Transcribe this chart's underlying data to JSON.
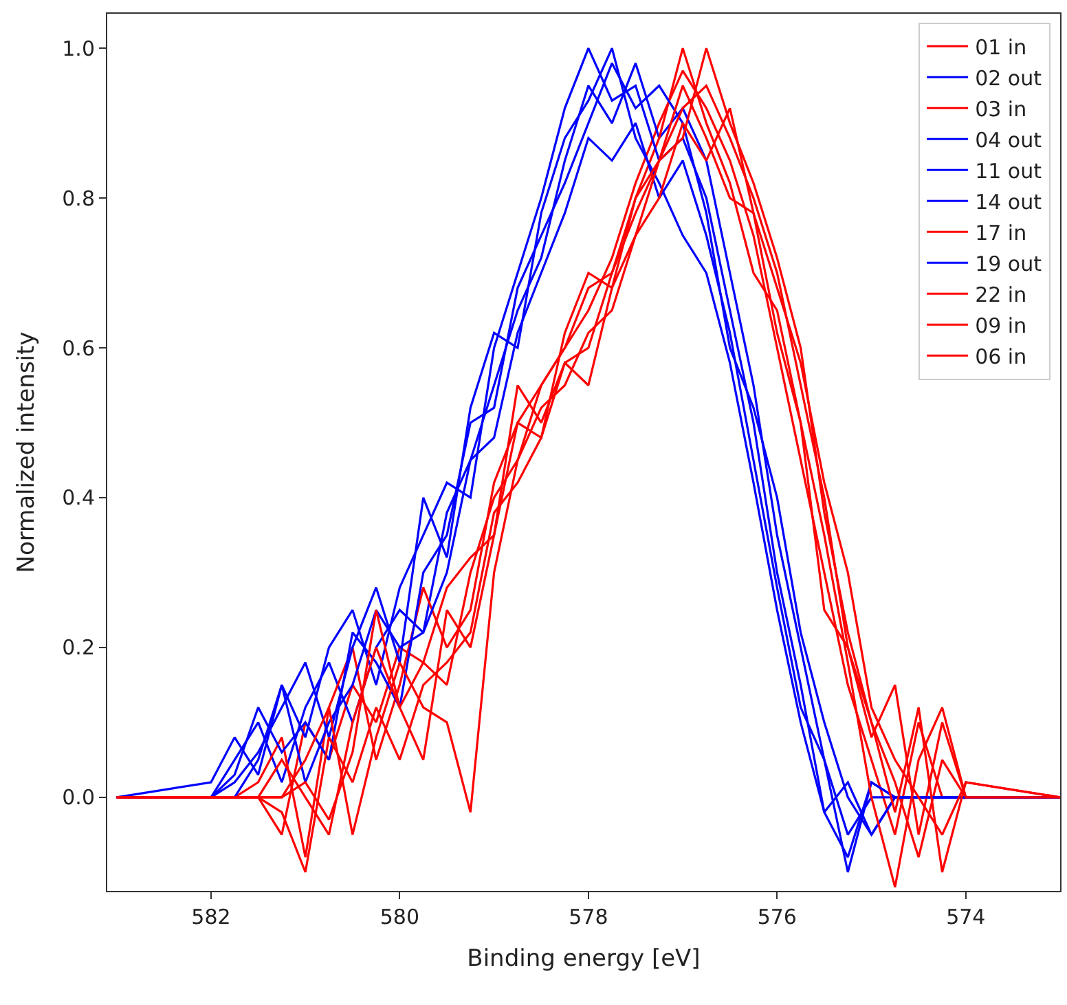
{
  "chart_data": {
    "type": "line",
    "xlabel": "Binding energy [eV]",
    "ylabel": "Normalized intensity",
    "x": [
      583,
      582,
      581.75,
      581.5,
      581.25,
      581,
      580.75,
      580.5,
      580.25,
      580,
      579.75,
      579.5,
      579.25,
      579,
      578.75,
      578.5,
      578.25,
      578,
      577.75,
      577.5,
      577.25,
      577,
      576.75,
      576.5,
      576.25,
      576,
      575.75,
      575.5,
      575.25,
      575,
      574.75,
      574.5,
      574.25,
      574,
      573
    ],
    "series": [
      {
        "name": "01 in",
        "color": "#ff0000",
        "values": [
          0,
          0,
          0,
          0,
          -0.05,
          0.1,
          0.05,
          0.15,
          0.1,
          0.2,
          0.18,
          0.15,
          0.3,
          0.4,
          0.45,
          0.55,
          0.6,
          0.65,
          0.72,
          0.82,
          0.9,
          0.97,
          0.92,
          0.85,
          0.75,
          0.6,
          0.45,
          0.3,
          0.15,
          0.05,
          -0.05,
          0.1,
          0,
          0,
          0
        ]
      },
      {
        "name": "02 out",
        "color": "#0000ff",
        "values": [
          0,
          0,
          0.05,
          0.1,
          0.02,
          0.12,
          0.18,
          0.1,
          0.2,
          0.25,
          0.22,
          0.38,
          0.45,
          0.55,
          0.65,
          0.72,
          0.85,
          0.95,
          0.9,
          0.98,
          0.88,
          0.92,
          0.85,
          0.7,
          0.55,
          0.35,
          0.2,
          0.05,
          -0.05,
          0,
          0,
          0,
          0,
          0,
          0
        ]
      },
      {
        "name": "03 in",
        "color": "#ff0000",
        "values": [
          0,
          0,
          0,
          0.02,
          0.08,
          -0.08,
          0.12,
          0.2,
          0.05,
          0.15,
          0.28,
          0.2,
          0.25,
          0.42,
          0.5,
          0.48,
          0.62,
          0.7,
          0.68,
          0.8,
          0.88,
          1.0,
          0.9,
          0.82,
          0.7,
          0.65,
          0.5,
          0.25,
          0.2,
          0.1,
          0.02,
          -0.08,
          0.05,
          0,
          0
        ]
      },
      {
        "name": "04 out",
        "color": "#0000ff",
        "values": [
          0,
          0.02,
          0.08,
          0.03,
          0.15,
          0.08,
          0.2,
          0.25,
          0.15,
          0.28,
          0.35,
          0.42,
          0.4,
          0.6,
          0.7,
          0.8,
          0.92,
          1.0,
          0.93,
          0.95,
          0.85,
          0.88,
          0.8,
          0.65,
          0.5,
          0.3,
          0.15,
          -0.02,
          -0.08,
          0.02,
          0,
          0,
          0,
          0,
          0
        ]
      },
      {
        "name": "11 out",
        "color": "#0000ff",
        "values": [
          0,
          0,
          0.03,
          0.12,
          0.06,
          0.1,
          0.05,
          0.22,
          0.18,
          0.12,
          0.3,
          0.35,
          0.5,
          0.52,
          0.68,
          0.75,
          0.82,
          0.9,
          0.98,
          0.92,
          0.95,
          0.9,
          0.78,
          0.6,
          0.52,
          0.4,
          0.22,
          0.1,
          0.0,
          -0.05,
          0,
          0,
          0,
          0,
          0
        ]
      },
      {
        "name": "14 out",
        "color": "#0000ff",
        "values": [
          0,
          0,
          0,
          0.05,
          0.15,
          0.02,
          0.1,
          0.15,
          0.25,
          0.2,
          0.22,
          0.3,
          0.45,
          0.48,
          0.62,
          0.7,
          0.78,
          0.88,
          0.85,
          0.9,
          0.8,
          0.85,
          0.75,
          0.62,
          0.45,
          0.28,
          0.12,
          0.05,
          -0.1,
          0.02,
          0,
          0,
          0,
          0,
          0
        ]
      },
      {
        "name": "17 in",
        "color": "#ff0000",
        "values": [
          0,
          0,
          0,
          0,
          0.05,
          0.0,
          -0.05,
          0.1,
          0.2,
          0.12,
          0.05,
          0.25,
          0.2,
          0.35,
          0.55,
          0.5,
          0.58,
          0.6,
          0.7,
          0.78,
          0.85,
          0.92,
          0.95,
          0.88,
          0.8,
          0.7,
          0.55,
          0.4,
          0.2,
          0.08,
          0.15,
          -0.05,
          0.1,
          0,
          0
        ]
      },
      {
        "name": "19 out",
        "color": "#0000ff",
        "values": [
          0,
          0,
          0.02,
          0.06,
          0.12,
          0.18,
          0.08,
          0.2,
          0.28,
          0.18,
          0.4,
          0.32,
          0.52,
          0.62,
          0.6,
          0.78,
          0.88,
          0.93,
          1.0,
          0.88,
          0.82,
          0.75,
          0.7,
          0.58,
          0.42,
          0.25,
          0.1,
          -0.02,
          0.02,
          -0.05,
          0,
          0,
          0,
          0,
          0
        ]
      },
      {
        "name": "22 in",
        "color": "#ff0000",
        "values": [
          0,
          0,
          0,
          0,
          0,
          0.05,
          0.12,
          -0.05,
          0.08,
          0.18,
          0.12,
          0.1,
          -0.02,
          0.3,
          0.45,
          0.52,
          0.55,
          0.62,
          0.65,
          0.75,
          0.85,
          0.88,
          1.0,
          0.9,
          0.82,
          0.72,
          0.6,
          0.38,
          0.22,
          0.1,
          -0.02,
          0.12,
          -0.1,
          0.02,
          0
        ]
      },
      {
        "name": "09 in",
        "color": "#ff0000",
        "values": [
          0,
          0,
          0,
          0,
          -0.02,
          -0.1,
          0.08,
          0.02,
          0.12,
          0.05,
          0.15,
          0.18,
          0.22,
          0.38,
          0.42,
          0.48,
          0.58,
          0.55,
          0.68,
          0.75,
          0.8,
          0.9,
          0.85,
          0.92,
          0.78,
          0.68,
          0.58,
          0.42,
          0.3,
          0.12,
          0.05,
          0.0,
          -0.05,
          0.02,
          0
        ]
      },
      {
        "name": "06 in",
        "color": "#ff0000",
        "values": [
          0,
          0,
          0,
          0,
          0,
          0.02,
          -0.03,
          0.06,
          0.25,
          0.12,
          0.18,
          0.28,
          0.32,
          0.35,
          0.5,
          0.55,
          0.6,
          0.68,
          0.7,
          0.8,
          0.85,
          0.95,
          0.88,
          0.8,
          0.78,
          0.62,
          0.5,
          0.35,
          0.18,
          0.0,
          -0.12,
          0.05,
          0.12,
          0,
          0
        ]
      }
    ],
    "xlim": [
      583.1,
      573.0
    ],
    "ylim": [
      -0.125,
      1.046
    ],
    "xticks": [
      582,
      580,
      578,
      576,
      574
    ],
    "yticks": [
      {
        "value": 0,
        "label": "0.0"
      },
      {
        "value": 0.2,
        "label": "0.2"
      },
      {
        "value": 0.4,
        "label": "0.4"
      },
      {
        "value": 0.6,
        "label": "0.6"
      },
      {
        "value": 0.8,
        "label": "0.8"
      },
      {
        "value": 1.0,
        "label": "1.0"
      }
    ],
    "legend": "top right"
  }
}
